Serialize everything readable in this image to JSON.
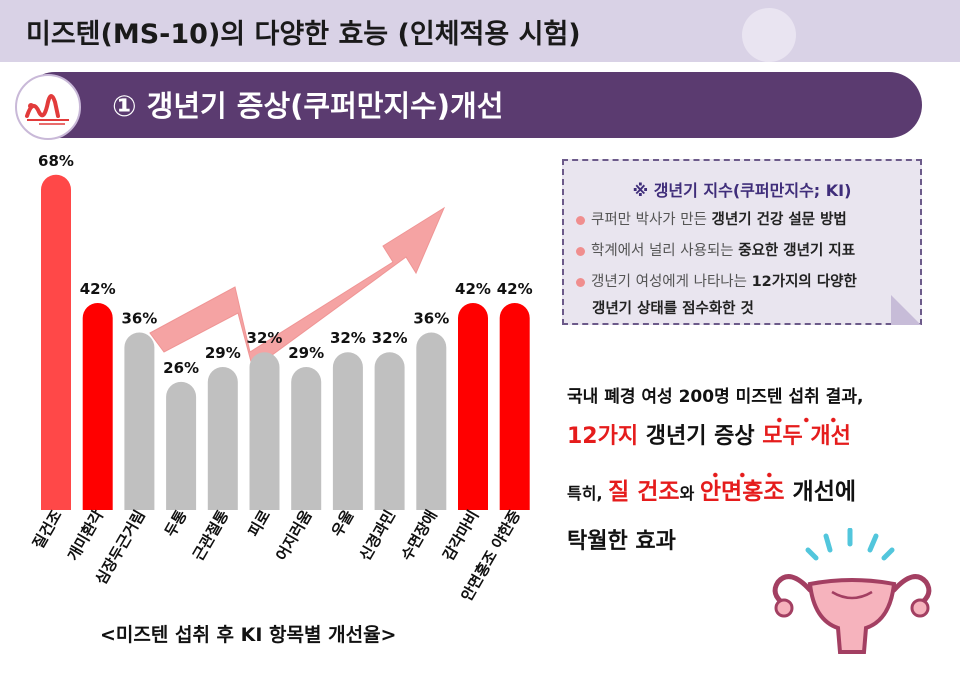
{
  "page_title": "미즈텐(MS-10)의 다양한 효능 (인체적용 시험)",
  "section_title": "① 갱년기 증상(쿠퍼만지수)개선",
  "chart_caption": "<미즈텐 섭취 후 KI 항목별 개선율>",
  "colors": {
    "highlight_red": "#ff0000",
    "top_red": "#ff4848",
    "gray": "#c0c0c0",
    "banner": "#5b3b70",
    "title_bg": "#d9d2e6"
  },
  "chart_data": {
    "type": "bar",
    "categories": [
      "질건조",
      "개미환각",
      "심장두근거림",
      "두통",
      "근관절통",
      "피로",
      "어지러움",
      "우울",
      "신경과민",
      "수면장애",
      "감각마비",
      "안면홍조 야한증"
    ],
    "values": [
      68,
      42,
      36,
      26,
      29,
      32,
      29,
      32,
      32,
      36,
      42,
      42
    ],
    "value_labels": [
      "68%",
      "42%",
      "36%",
      "26%",
      "29%",
      "32%",
      "29%",
      "32%",
      "32%",
      "36%",
      "42%",
      "42%"
    ],
    "bar_colors": [
      "#ff4848",
      "#ff0000",
      "#c0c0c0",
      "#c0c0c0",
      "#c0c0c0",
      "#c0c0c0",
      "#c0c0c0",
      "#c0c0c0",
      "#c0c0c0",
      "#c0c0c0",
      "#ff0000",
      "#ff0000"
    ],
    "ylim": [
      0,
      70
    ]
  },
  "ki_box": {
    "header": "※ 갱년기 지수(쿠퍼만지수; KI)",
    "item1_plain": "쿠퍼만 박사가 만든 ",
    "item1_bold": "갱년기 건강 설문 방법",
    "item2_plain": "학계에서 널리 사용되는 ",
    "item2_bold": "중요한 갱년기 지표",
    "item3_plain": "갱년기 여성에게 나타나는 ",
    "item3_bold": "12가지의 다양한",
    "item3_cont": "갱년기 상태를 점수화한 것"
  },
  "summary": {
    "line1": "국내 폐경 여성 200명 미즈텐 섭취 결과,",
    "line2_red1": "12가지",
    "line2_mid": " 갱년기 증상 ",
    "line2_red2": "모두 개선",
    "line3_small": "특히, ",
    "line3_red1": "질 건조",
    "line3_wa": "와 ",
    "line3_red2": "안면홍조",
    "line3_end": " 개선에",
    "line4": "탁월한 효과"
  }
}
